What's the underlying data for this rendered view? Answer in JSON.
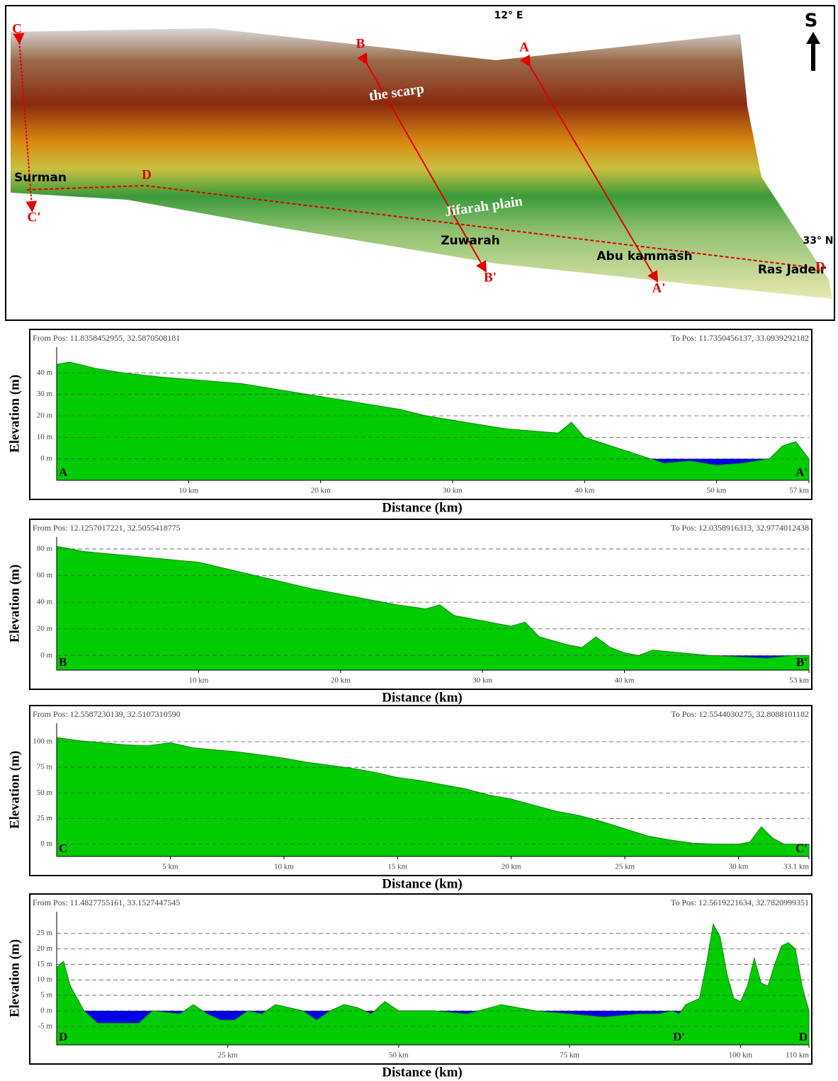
{
  "map": {
    "labels": [
      "12° E",
      "S",
      "33° N",
      "C",
      "B",
      "A",
      "the scarp",
      "Surman",
      "D",
      "C'",
      "Jifarah plain",
      "Zuwarah",
      "Abu kammash",
      "B'",
      "A'",
      "Ras Jadeir",
      "D"
    ]
  },
  "chart_data": [
    {
      "type": "area",
      "from_label": "From Pos: 11.8358452955, 32.5870508181",
      "to_label": "To Pos: 11.7350456137, 33.0939292182",
      "y_label": "Elevation (m)",
      "x_label": "Distance (km)",
      "start_label": "A",
      "end_label": "A'",
      "x": [
        0,
        1,
        3,
        5,
        8,
        10,
        12,
        14,
        16,
        18,
        20,
        22,
        24,
        26,
        28,
        30,
        32,
        34,
        36,
        38,
        39,
        40,
        42,
        44,
        45,
        46,
        48,
        50,
        52,
        54,
        55,
        56,
        57
      ],
      "values": [
        44,
        45,
        42,
        40,
        38,
        37,
        36,
        35,
        33,
        31,
        29,
        27,
        25,
        23,
        20,
        18,
        16,
        14,
        13,
        12,
        17,
        10,
        6,
        2,
        0,
        -2,
        -1,
        -3,
        -2,
        0,
        6,
        8,
        0
      ],
      "color": "#00cc00",
      "negative_color": "#0000e6",
      "xlim": [
        0,
        57
      ],
      "ylim": [
        -10,
        52
      ],
      "xticks": [
        {
          "value": 10,
          "label": "10 km"
        },
        {
          "value": 20,
          "label": "20 km"
        },
        {
          "value": 30,
          "label": "30 km"
        },
        {
          "value": 40,
          "label": "40 km"
        },
        {
          "value": 50,
          "label": "50 km"
        },
        {
          "value": 57,
          "label": "57 km"
        }
      ],
      "yticks": [
        {
          "value": 0,
          "label": "0 m"
        },
        {
          "value": 10,
          "label": "10 m"
        },
        {
          "value": 20,
          "label": "20 m"
        },
        {
          "value": 30,
          "label": "30 m"
        },
        {
          "value": 40,
          "label": "40 m"
        }
      ],
      "grid": true
    },
    {
      "type": "area",
      "from_label": "From Pos: 12.1257017221, 32.5055418775",
      "to_label": "To Pos: 12.0358916313, 32.9774012438",
      "y_label": "Elevation (m)",
      "x_label": "Distance (km)",
      "start_label": "B",
      "end_label": "B'",
      "x": [
        0,
        2,
        5,
        8,
        10,
        12,
        14,
        16,
        18,
        20,
        22,
        24,
        26,
        27,
        28,
        30,
        32,
        33,
        34,
        36,
        37,
        38,
        39,
        40,
        41,
        42,
        44,
        46,
        48,
        50,
        52,
        53
      ],
      "values": [
        82,
        78,
        75,
        72,
        70,
        65,
        60,
        55,
        50,
        46,
        42,
        38,
        35,
        38,
        30,
        26,
        22,
        25,
        14,
        8,
        6,
        14,
        6,
        2,
        0,
        4,
        2,
        0,
        -1,
        -2,
        0,
        0
      ],
      "color": "#00cc00",
      "negative_color": "#0000e6",
      "xlim": [
        0,
        53
      ],
      "ylim": [
        -11,
        89
      ],
      "xticks": [
        {
          "value": 10,
          "label": "10 km"
        },
        {
          "value": 20,
          "label": "20 km"
        },
        {
          "value": 30,
          "label": "30 km"
        },
        {
          "value": 40,
          "label": "40 km"
        },
        {
          "value": 53,
          "label": "53 km"
        }
      ],
      "yticks": [
        {
          "value": 0,
          "label": "0 m"
        },
        {
          "value": 20,
          "label": "20 m"
        },
        {
          "value": 40,
          "label": "40 m"
        },
        {
          "value": 60,
          "label": "60 m"
        },
        {
          "value": 80,
          "label": "80 m"
        }
      ],
      "grid": true
    },
    {
      "type": "area",
      "from_label": "From Pos: 12.5587230139, 32.5107310590",
      "to_label": "To Pos: 12.5544030275, 32.8088101182",
      "y_label": "Elevation (m)",
      "x_label": "Distance (km)",
      "start_label": "C",
      "end_label": "C'",
      "x": [
        0,
        1,
        2,
        3,
        4,
        5,
        6,
        7,
        8,
        9,
        10,
        11,
        12,
        13,
        14,
        15,
        16,
        17,
        18,
        19,
        20,
        21,
        22,
        23,
        24,
        25,
        26,
        27,
        28,
        29,
        30,
        30.5,
        31,
        31.5,
        32,
        33.1
      ],
      "values": [
        104,
        101,
        99,
        97,
        96,
        99,
        94,
        92,
        90,
        87,
        84,
        80,
        77,
        74,
        70,
        65,
        62,
        58,
        54,
        48,
        44,
        38,
        32,
        28,
        22,
        15,
        8,
        4,
        1,
        0,
        0,
        2,
        17,
        6,
        0,
        0
      ],
      "color": "#00cc00",
      "negative_color": "#0000e6",
      "xlim": [
        0,
        33.1
      ],
      "ylim": [
        -12,
        118
      ],
      "xticks": [
        {
          "value": 5,
          "label": "5 km"
        },
        {
          "value": 10,
          "label": "10 km"
        },
        {
          "value": 15,
          "label": "15 km"
        },
        {
          "value": 20,
          "label": "20 km"
        },
        {
          "value": 25,
          "label": "25 km"
        },
        {
          "value": 30,
          "label": "30 km"
        },
        {
          "value": 33.1,
          "label": "33.1 km"
        }
      ],
      "yticks": [
        {
          "value": 0,
          "label": "0 m"
        },
        {
          "value": 25,
          "label": "25 m"
        },
        {
          "value": 50,
          "label": "50 m"
        },
        {
          "value": 75,
          "label": "75 m"
        },
        {
          "value": 100,
          "label": "100 m"
        }
      ],
      "grid": true
    },
    {
      "type": "area",
      "from_label": "From Pos: 11.4827755161, 33.1527447545",
      "to_label": "To Pos: 12.5619221634, 32.7820999351",
      "y_label": "Elevation (m)",
      "x_label": "Distance (km)",
      "start_label": "D",
      "end_label": "D",
      "markers": [
        {
          "x": 91,
          "label": "D'"
        }
      ],
      "x": [
        0,
        1,
        2,
        3,
        4,
        6,
        10,
        12,
        14,
        18,
        20,
        22,
        24,
        26,
        28,
        30,
        32,
        36,
        38,
        40,
        42,
        44,
        46,
        48,
        50,
        55,
        60,
        65,
        70,
        75,
        80,
        85,
        88,
        90,
        91,
        92,
        94,
        95,
        96,
        97,
        98,
        99,
        100,
        101,
        102,
        103,
        104,
        105,
        106,
        107,
        108,
        109,
        110
      ],
      "values": [
        14,
        16,
        8,
        4,
        0,
        -4,
        -4,
        -4,
        0,
        -1,
        2,
        -1,
        -3,
        -3,
        0,
        -1,
        2,
        0,
        -3,
        0,
        2,
        1,
        -1,
        3,
        0,
        0,
        -1,
        2,
        0,
        -1,
        -2,
        -1,
        -1,
        0,
        -1,
        2,
        4,
        15,
        28,
        24,
        12,
        4,
        3,
        8,
        17,
        9,
        8,
        15,
        21,
        22,
        20,
        8,
        0
      ],
      "color": "#00cc00",
      "negative_color": "#0000e6",
      "xlim": [
        0,
        110
      ],
      "ylim": [
        -11,
        32
      ],
      "xticks": [
        {
          "value": 25,
          "label": "25 km"
        },
        {
          "value": 50,
          "label": "50 km"
        },
        {
          "value": 75,
          "label": "75 km"
        },
        {
          "value": 100,
          "label": "100 km"
        },
        {
          "value": 110,
          "label": "110 km"
        }
      ],
      "yticks": [
        {
          "value": -5,
          "label": "-5 m"
        },
        {
          "value": 0,
          "label": "0 m"
        },
        {
          "value": 5,
          "label": "5 m"
        },
        {
          "value": 10,
          "label": "10 m"
        },
        {
          "value": 15,
          "label": "15 m"
        },
        {
          "value": 20,
          "label": "20 m"
        },
        {
          "value": 25,
          "label": "25 m"
        }
      ],
      "grid": true
    }
  ]
}
